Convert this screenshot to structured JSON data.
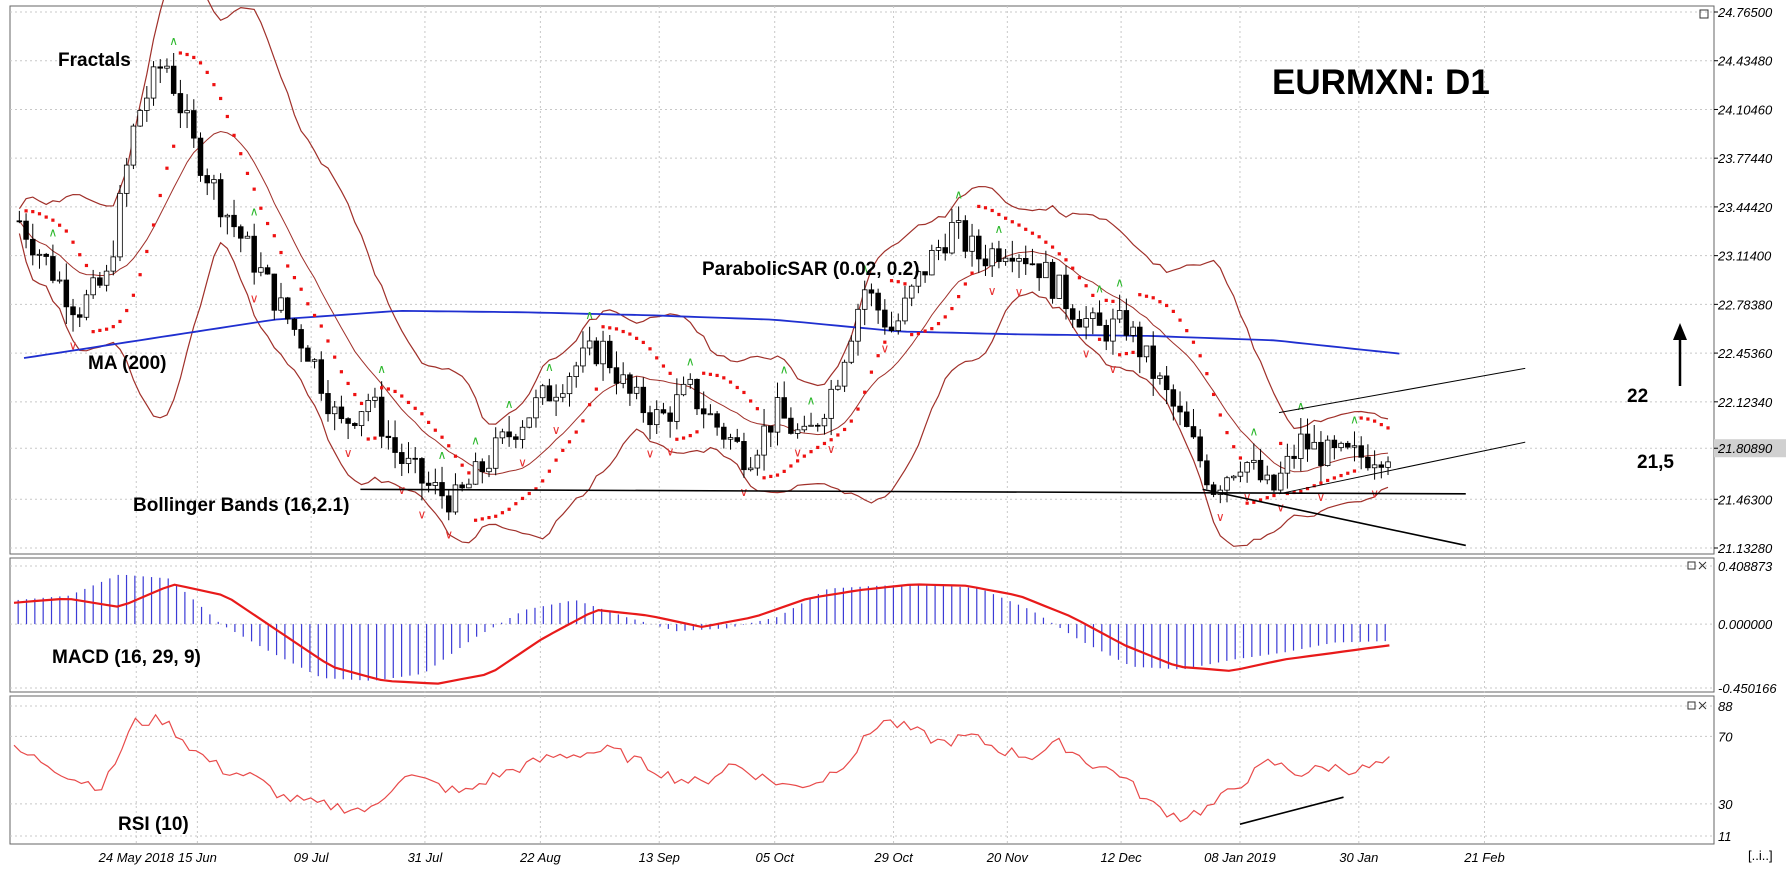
{
  "title": "EURMXN: D1",
  "indicator_labels": {
    "fractals": "Fractals",
    "ma": "MA (200)",
    "psar": "ParabolicSAR (0.02, 0.2)",
    "bb": "Bollinger Bands (16,2.1)",
    "macd": "MACD (16, 29, 9)",
    "rsi": "RSI (10)"
  },
  "annotations": {
    "level_22": "22",
    "level_215": "21,5"
  },
  "price_axis": [
    "24.76500",
    "24.43480",
    "24.10460",
    "23.77440",
    "23.44420",
    "23.11400",
    "22.78380",
    "22.45360",
    "22.12340",
    "21.80890",
    "21.46300",
    "21.13280"
  ],
  "price_axis_values": [
    24.765,
    24.4348,
    24.1046,
    23.7744,
    23.4442,
    23.114,
    22.7838,
    22.4536,
    22.1234,
    21.8089,
    21.463,
    21.1328
  ],
  "current_price": "21.80890",
  "macd_axis": [
    "0.408873",
    "0.000000",
    "-0.450166"
  ],
  "rsi_axis": [
    "88",
    "70",
    "30",
    "11"
  ],
  "date_labels": [
    "24 May 2018",
    "15 Jun",
    "09 Jul",
    "31 Jul",
    "22 Aug",
    "13 Sep",
    "05 Oct",
    "29 Oct",
    "20 Nov",
    "12 Dec",
    "08 Jan 2019",
    "30 Jan",
    "21 Feb"
  ],
  "corner_marker": "[..i..]",
  "colors": {
    "bb": "#a0302a",
    "ma": "#1f2fd0",
    "sar": "#ee1111",
    "macd_hist": "#3b3bd6",
    "macd_signal": "#e81a1a",
    "rsi": "#e84a4a",
    "fractal_up": "#2db82d",
    "fractal_down": "#e83030",
    "grid": "#c8c8c8"
  },
  "chart_data": [
    {
      "type": "candlestick",
      "title": "EURMXN: D1",
      "ylim": [
        21.1328,
        24.765
      ],
      "x_ticks": [
        "24 May 2018",
        "15 Jun",
        "09 Jul",
        "31 Jul",
        "22 Aug",
        "13 Sep",
        "05 Oct",
        "29 Oct",
        "20 Nov",
        "12 Dec",
        "08 Jan 2019",
        "30 Jan",
        "21 Feb"
      ],
      "close_path": [
        23.35,
        23.05,
        22.75,
        22.95,
        24.05,
        24.45,
        23.85,
        23.45,
        23.1,
        22.75,
        22.45,
        21.95,
        22.15,
        21.75,
        21.55,
        21.45,
        21.7,
        21.95,
        22.15,
        22.35,
        22.5,
        22.15,
        22.0,
        22.2,
        21.95,
        21.75,
        22.05,
        21.85,
        22.25,
        22.9,
        22.6,
        23.0,
        23.3,
        23.1,
        23.2,
        23.05,
        22.8,
        22.6,
        22.65,
        22.3,
        21.95,
        21.55,
        21.75,
        21.5,
        21.85,
        21.75,
        21.75,
        21.8
      ],
      "series": [
        {
          "name": "MA (200)",
          "values": [
            22.42,
            22.55,
            22.68,
            22.74,
            22.73,
            22.71,
            22.68,
            22.6,
            22.58,
            22.57,
            22.54,
            22.45
          ]
        },
        {
          "name": "Bollinger Bands (16,2.1)",
          "values": []
        },
        {
          "name": "ParabolicSAR (0.02, 0.2)",
          "values": []
        }
      ],
      "levels": [
        22.0,
        21.5
      ],
      "last": 21.8089
    },
    {
      "type": "bar",
      "title": "MACD (16, 29, 9)",
      "ylim": [
        -0.450166,
        0.408873
      ],
      "histogram_path": [
        0.17,
        0.2,
        0.35,
        0.32,
        0.0,
        -0.2,
        -0.38,
        -0.4,
        -0.35,
        -0.1,
        0.1,
        0.17,
        0.05,
        -0.05,
        -0.03,
        0.05,
        0.25,
        0.27,
        0.28,
        0.25,
        0.1,
        -0.12,
        -0.3,
        -0.32,
        -0.25,
        -0.2,
        -0.13,
        -0.12
      ],
      "signal_path": [
        0.15,
        0.18,
        0.12,
        0.28,
        0.2,
        -0.05,
        -0.3,
        -0.4,
        -0.42,
        -0.35,
        -0.1,
        0.1,
        0.06,
        -0.02,
        0.05,
        0.18,
        0.24,
        0.28,
        0.27,
        0.2,
        0.05,
        -0.15,
        -0.3,
        -0.33,
        -0.25,
        -0.2,
        -0.15
      ]
    },
    {
      "type": "line",
      "title": "RSI (10)",
      "ylim": [
        11,
        88
      ],
      "values": [
        62,
        55,
        45,
        40,
        78,
        80,
        62,
        50,
        46,
        34,
        30,
        28,
        26,
        48,
        42,
        36,
        46,
        52,
        58,
        60,
        62,
        54,
        46,
        42,
        54,
        46,
        40,
        44,
        58,
        80,
        74,
        66,
        70,
        62,
        58,
        66,
        54,
        48,
        30,
        22,
        28,
        42,
        55,
        48,
        52,
        50,
        55
      ]
    }
  ]
}
